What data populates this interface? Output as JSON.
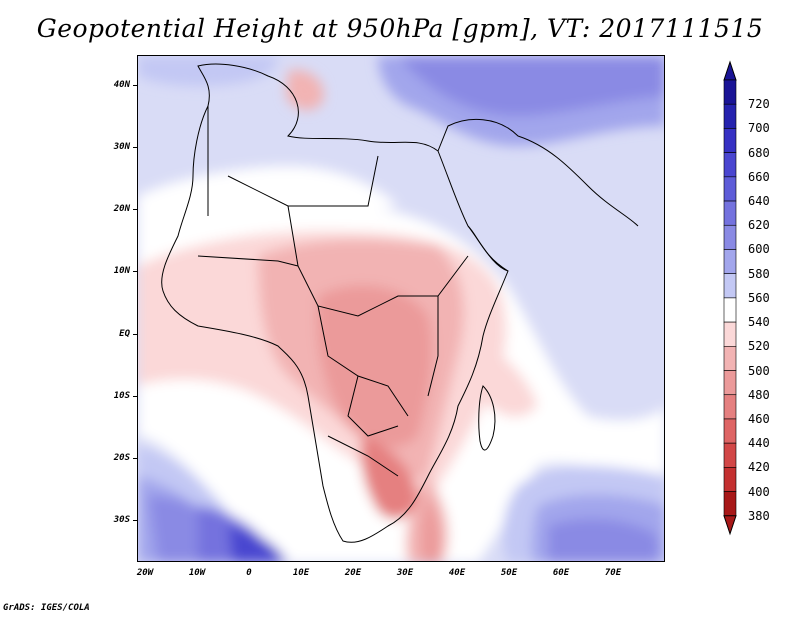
{
  "title": "Geopotential Height at 950hPa [gpm], VT: 2017111515",
  "footer": "GrADS: IGES/COLA",
  "map": {
    "lat_labels": [
      "40N",
      "30N",
      "20N",
      "10N",
      "EQ",
      "10S",
      "20S",
      "30S"
    ],
    "lon_labels": [
      "20W",
      "10W",
      "0",
      "10E",
      "20E",
      "30E",
      "40E",
      "50E",
      "60E",
      "70E"
    ]
  },
  "colorbar": {
    "levels": [
      "720",
      "700",
      "680",
      "660",
      "640",
      "620",
      "600",
      "580",
      "560",
      "540",
      "520",
      "500",
      "480",
      "460",
      "440",
      "420",
      "400",
      "380"
    ],
    "colors": [
      "#1a1496",
      "#2522ae",
      "#3631c3",
      "#4a46d0",
      "#5e5cd8",
      "#7472de",
      "#8a8ae4",
      "#a2a6ec",
      "#c3c8f4",
      "#ffffff",
      "#fbd8d8",
      "#f2b3b3",
      "#eb9a9a",
      "#e58080",
      "#de6565",
      "#d24747",
      "#c43030",
      "#a81818"
    ],
    "top_color": "#1a1496",
    "bottom_color": "#a81818"
  }
}
